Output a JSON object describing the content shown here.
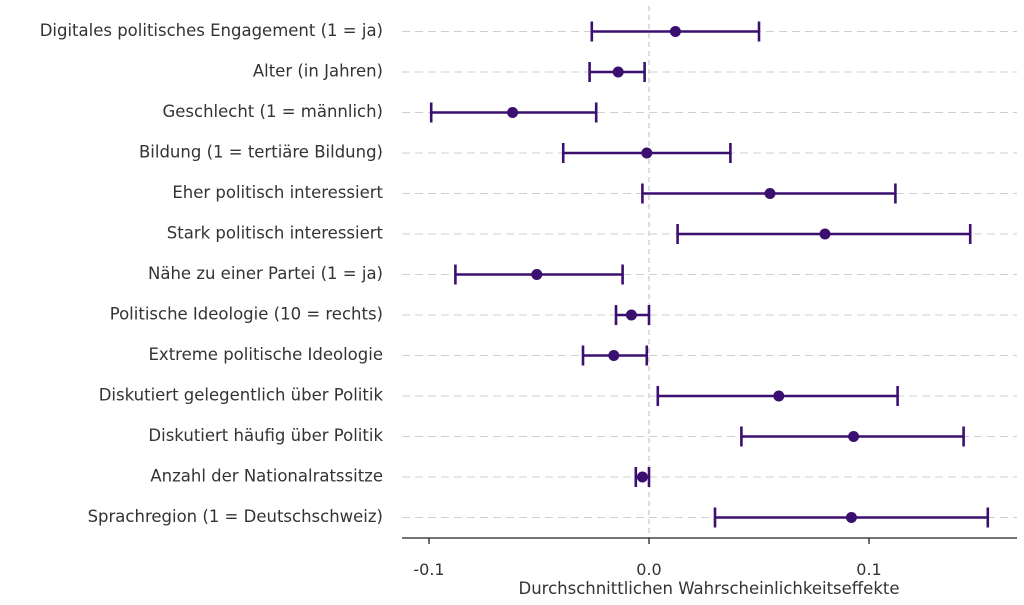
{
  "chart_data": {
    "type": "errorbar",
    "xlabel": "Durchschnittlichen Wahrscheinlichkeitseffekte",
    "xlim": [
      -0.11,
      0.17
    ],
    "xticks": [
      -0.1,
      0.0,
      0.1
    ],
    "xtick_labels": [
      "-0.1",
      "0.0",
      "0.1"
    ],
    "reference_line": 0.0,
    "color": "#3b0f70",
    "grid": "dashed horizontal",
    "rows": [
      {
        "label": "Digitales politisches Engagement (1 = ja)",
        "estimate": 0.012,
        "low": -0.026,
        "high": 0.05
      },
      {
        "label": "Alter (in Jahren)",
        "estimate": -0.014,
        "low": -0.027,
        "high": -0.002
      },
      {
        "label": "Geschlecht (1 = männlich)",
        "estimate": -0.062,
        "low": -0.099,
        "high": -0.024
      },
      {
        "label": "Bildung (1 = tertiäre Bildung)",
        "estimate": -0.001,
        "low": -0.039,
        "high": 0.037
      },
      {
        "label": "Eher politisch interessiert",
        "estimate": 0.055,
        "low": -0.003,
        "high": 0.112
      },
      {
        "label": "Stark politisch interessiert",
        "estimate": 0.08,
        "low": 0.013,
        "high": 0.146
      },
      {
        "label": "Nähe zu einer Partei (1 = ja)",
        "estimate": -0.051,
        "low": -0.088,
        "high": -0.012
      },
      {
        "label": "Politische Ideologie (10 = rechts)",
        "estimate": -0.008,
        "low": -0.015,
        "high": 0.0
      },
      {
        "label": "Extreme politische Ideologie",
        "estimate": -0.016,
        "low": -0.03,
        "high": -0.001
      },
      {
        "label": "Diskutiert gelegentlich über Politik",
        "estimate": 0.059,
        "low": 0.004,
        "high": 0.113
      },
      {
        "label": "Diskutiert häufig über Politik",
        "estimate": 0.093,
        "low": 0.042,
        "high": 0.143
      },
      {
        "label": "Anzahl der Nationalratssitze",
        "estimate": -0.003,
        "low": -0.006,
        "high": 0.0
      },
      {
        "label": "Sprachregion (1 = Deutschschweiz)",
        "estimate": 0.092,
        "low": 0.03,
        "high": 0.154
      }
    ]
  }
}
